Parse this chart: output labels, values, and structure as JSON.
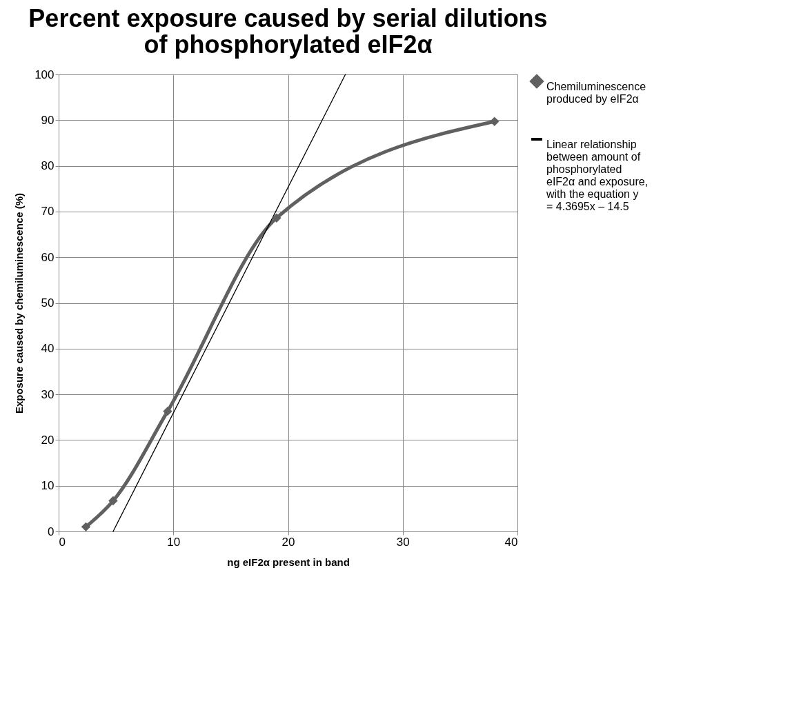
{
  "chart_data": {
    "type": "line",
    "title": "Percent exposure caused by serial dilutions of phosphorylated eIF2α",
    "xlabel": "ng eIF2α present in band",
    "ylabel": "Exposure caused by chemiluminescence (%)",
    "x": [
      2.375,
      4.75,
      9.5,
      19,
      38
    ],
    "series": [
      {
        "name": "Chemiluminescence produced by eIF2α",
        "color": "#606060",
        "values": [
          1,
          6.7,
          26.3,
          68.6,
          89.7
        ],
        "marker": "diamond"
      },
      {
        "name": "Linear relationship between amount of phosphorylated eIF2α and exposure, with the equation y = 4.3695x – 14.5",
        "color": "#000000",
        "x": [
          4.75,
          25
        ],
        "values": [
          0,
          100
        ],
        "marker": "none"
      }
    ],
    "xlim": [
      0,
      40
    ],
    "xticks": [
      0,
      10,
      20,
      30,
      40
    ],
    "ylim": [
      0,
      100
    ],
    "yticks": [
      0,
      10,
      20,
      30,
      40,
      50,
      60,
      70,
      80,
      90,
      100
    ],
    "grid": true,
    "legend": "right"
  }
}
